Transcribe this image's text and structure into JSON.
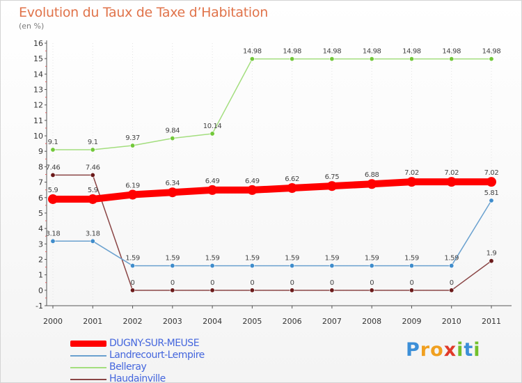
{
  "chart_data": {
    "type": "line",
    "title": "Evolution du Taux de Taxe d’Habitation",
    "ylabel": "(en %)",
    "xlabel": "",
    "ylim": [
      -1,
      16
    ],
    "yticks": [
      "-1",
      "0",
      "1",
      "2",
      "3",
      "4",
      "5",
      "6",
      "7",
      "8",
      "9",
      "10",
      "11",
      "12",
      "13",
      "14",
      "15",
      "16"
    ],
    "categories": [
      "2000",
      "2001",
      "2002",
      "2003",
      "2004",
      "2005",
      "2006",
      "2007",
      "2008",
      "2009",
      "2010",
      "2011"
    ],
    "series": [
      {
        "name": "DUGNY-SUR-MEUSE",
        "color": "#ff0000",
        "values": [
          5.9,
          5.9,
          6.19,
          6.34,
          6.49,
          6.49,
          6.62,
          6.75,
          6.88,
          7.02,
          7.02,
          7.02
        ],
        "labels": [
          "5.9",
          "5.9",
          "6.19",
          "6.34",
          "6.49",
          "6.49",
          "6.62",
          "6.75",
          "6.88",
          "7.02",
          "7.02",
          "7.02"
        ]
      },
      {
        "name": "Landrecourt-Lempire",
        "color": "#6aa1cf",
        "point_color": "#3f8ccb",
        "values": [
          3.18,
          3.18,
          1.59,
          1.59,
          1.59,
          1.59,
          1.59,
          1.59,
          1.59,
          1.59,
          1.59,
          5.81
        ],
        "labels": [
          "3.18",
          "3.18",
          "1.59",
          "1.59",
          "1.59",
          "1.59",
          "1.59",
          "1.59",
          "1.59",
          "1.59",
          "1.59",
          "5.81"
        ]
      },
      {
        "name": "Belleray",
        "color": "#a3de7e",
        "point_color": "#72c83a",
        "values": [
          9.1,
          9.1,
          9.37,
          9.84,
          10.14,
          14.98,
          14.98,
          14.98,
          14.98,
          14.98,
          14.98,
          14.98
        ],
        "labels": [
          "9.1",
          "9.1",
          "9.37",
          "9.84",
          "10.14",
          "14.98",
          "14.98",
          "14.98",
          "14.98",
          "14.98",
          "14.98",
          "14.98"
        ]
      },
      {
        "name": "Haudainville",
        "color": "#8a4545",
        "point_color": "#6b1a1a",
        "values": [
          7.46,
          7.46,
          0,
          0,
          0,
          0,
          0,
          0,
          0,
          0,
          0,
          1.9
        ],
        "labels": [
          "7.46",
          "7.46",
          "0",
          "0",
          "0",
          "0",
          "0",
          "0",
          "0",
          "0",
          "0",
          "1.9"
        ]
      }
    ],
    "legend_position": "bottom-left"
  },
  "logo": {
    "letters": [
      "P",
      "r",
      "o",
      "x",
      "i",
      "t",
      "i"
    ],
    "colors": [
      "#3c8fd8",
      "#f0a020",
      "#f0a020",
      "#e03a2a",
      "#72c02c",
      "#3c8fd8",
      "#72c02c"
    ]
  }
}
